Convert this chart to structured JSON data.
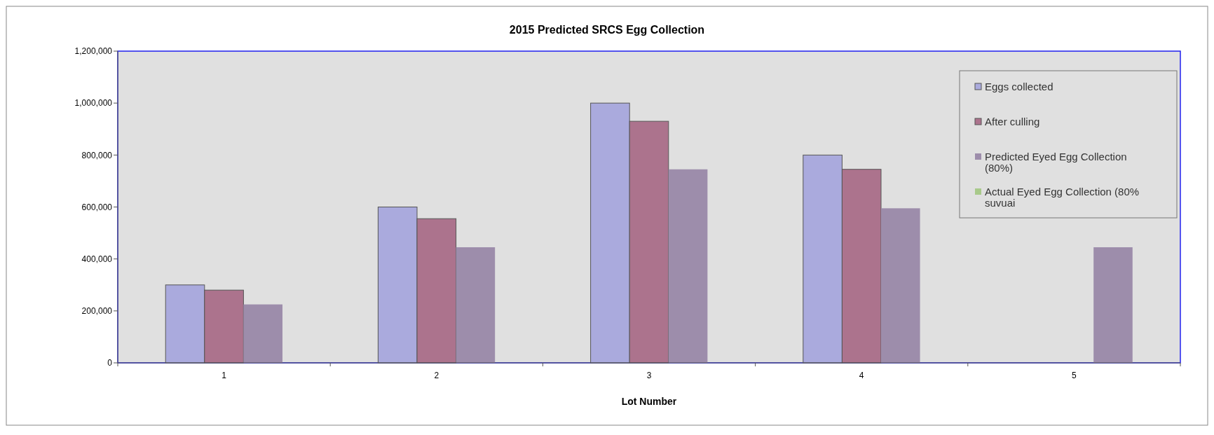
{
  "chart_data": {
    "type": "bar",
    "title": "2015 Predicted SRCS Egg Collection",
    "xlabel": "Lot Number",
    "categories": [
      "1",
      "2",
      "3",
      "4",
      "5"
    ],
    "series": [
      {
        "name": "Eggs collected",
        "color": "#aaaadd",
        "values": [
          300000,
          600000,
          1000000,
          800000,
          null
        ]
      },
      {
        "name": "After culling",
        "color": "#ac738d",
        "values": [
          280000,
          555000,
          930000,
          745000,
          null
        ]
      },
      {
        "name": "Predicted Eyed Egg Collection (80%)",
        "color": "#9d8dab",
        "values": [
          225000,
          445000,
          745000,
          595000,
          445000
        ]
      },
      {
        "name": "Actual Eyed Egg Collection (80% suvuai",
        "color": "#a8c98a",
        "values": [
          null,
          null,
          null,
          null,
          null
        ]
      }
    ],
    "ylim": [
      0,
      1200000
    ],
    "yticks": [
      0,
      {
        "value": 200000,
        "label": "200,000"
      },
      {
        "value": 400000,
        "label": "400,000"
      },
      {
        "value": 600000,
        "label": "600,000"
      },
      {
        "value": 800000,
        "label": "800,000"
      },
      {
        "value": 1000000,
        "label": "1,000,000"
      },
      {
        "value": 1200000,
        "label": "1,200,000"
      }
    ],
    "legend": "top right",
    "grid": false
  }
}
